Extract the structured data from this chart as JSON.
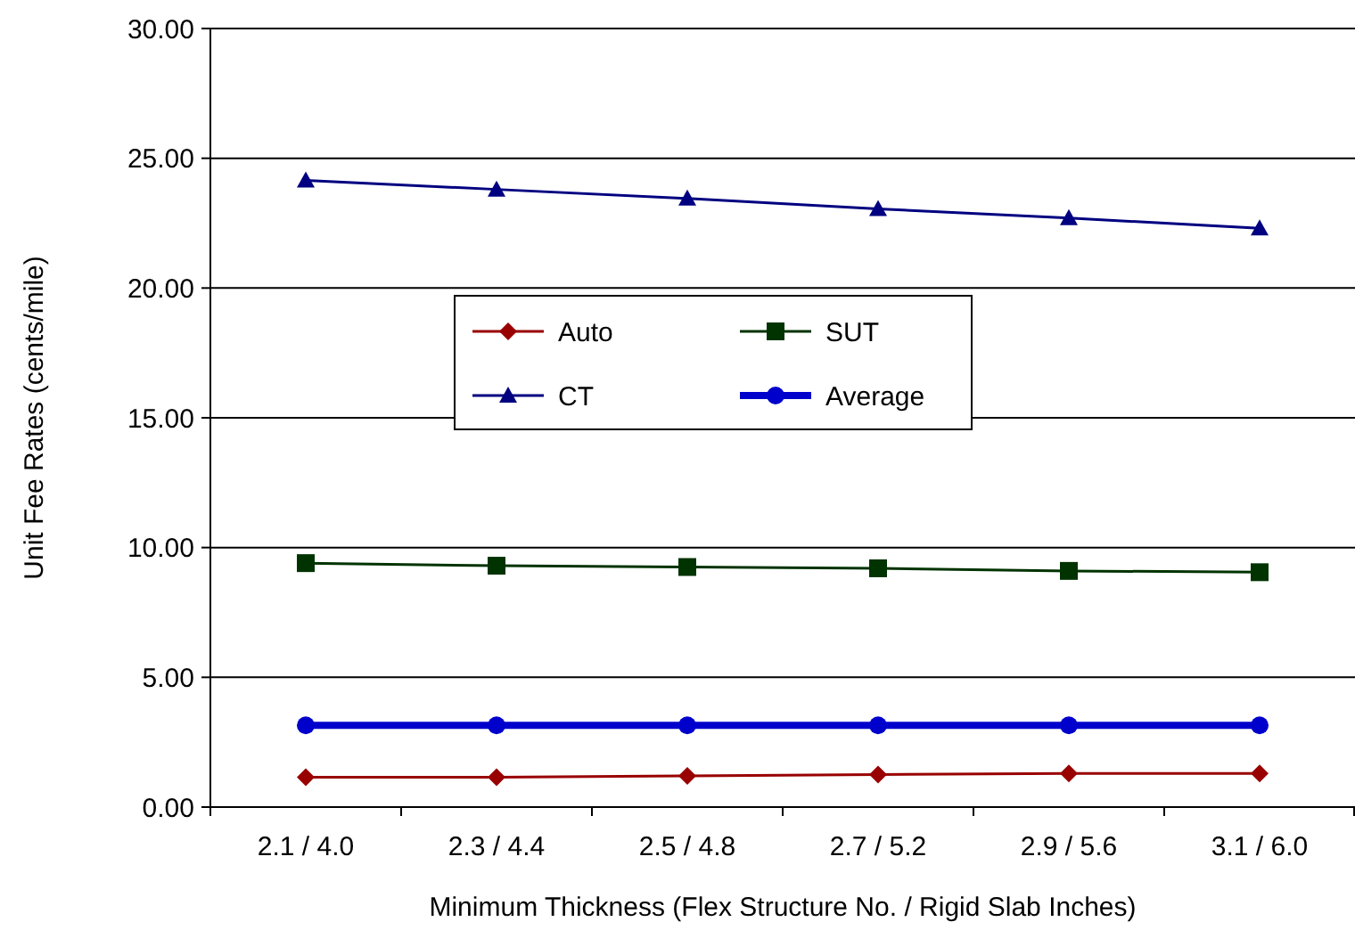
{
  "chart_data": {
    "type": "line",
    "xlabel": "Minimum Thickness (Flex Structure No. / Rigid Slab Inches)",
    "ylabel": "Unit Fee Rates (cents/mile)",
    "categories": [
      "2.1 / 4.0",
      "2.3 / 4.4",
      "2.5 / 4.8",
      "2.7 / 5.2",
      "2.9 / 5.6",
      "3.1 / 6.0"
    ],
    "series": [
      {
        "name": "Auto",
        "color": "#990000",
        "marker": "diamond",
        "values": [
          1.15,
          1.15,
          1.2,
          1.25,
          1.3,
          1.3
        ]
      },
      {
        "name": "SUT",
        "color": "#003300",
        "marker": "square",
        "values": [
          9.4,
          9.3,
          9.25,
          9.2,
          9.1,
          9.05
        ]
      },
      {
        "name": "CT",
        "color": "#000080",
        "marker": "triangle",
        "values": [
          24.15,
          23.8,
          23.45,
          23.05,
          22.7,
          22.3
        ]
      },
      {
        "name": "Average",
        "color": "#0000cc",
        "marker": "circle",
        "values": [
          3.15,
          3.15,
          3.15,
          3.15,
          3.15,
          3.15
        ]
      }
    ],
    "ylim": [
      0,
      30
    ],
    "yticks": [
      {
        "value": 0,
        "label": "0.00"
      },
      {
        "value": 5,
        "label": "5.00"
      },
      {
        "value": 10,
        "label": "10.00"
      },
      {
        "value": 15,
        "label": "15.00"
      },
      {
        "value": 20,
        "label": "20.00"
      },
      {
        "value": 25,
        "label": "25.00"
      },
      {
        "value": 30,
        "label": "30.00"
      }
    ],
    "grid": "y",
    "legend": "top",
    "line_style": "solid"
  }
}
